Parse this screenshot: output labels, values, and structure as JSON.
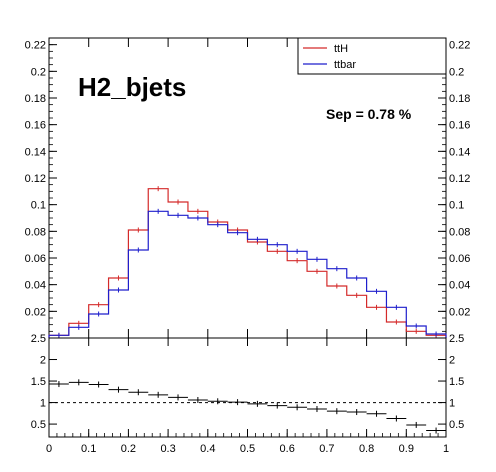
{
  "chart_data": [
    {
      "type": "histogram",
      "title": "H2_bjets",
      "annotation": "Sep = 0.78 %",
      "xlim": [
        0,
        1
      ],
      "ylim": [
        0,
        0.225
      ],
      "bin_edges": [
        0,
        0.05,
        0.1,
        0.15,
        0.2,
        0.25,
        0.3,
        0.35,
        0.4,
        0.45,
        0.5,
        0.55,
        0.6,
        0.65,
        0.7,
        0.75,
        0.8,
        0.85,
        0.9,
        0.95,
        1.0
      ],
      "y_ticks": [
        0.02,
        0.04,
        0.06,
        0.08,
        0.1,
        0.12,
        0.14,
        0.16,
        0.18,
        0.2,
        0.22
      ],
      "y_tick_labels": [
        "0.02",
        "0.04",
        "0.06",
        "0.08",
        "0.1",
        "0.12",
        "0.14",
        "0.16",
        "0.18",
        "0.2",
        "0.22"
      ],
      "legend": {
        "position": "top-right"
      },
      "series": [
        {
          "name": "ttH",
          "color": "#d42a2a",
          "values": [
            0.002,
            0.011,
            0.025,
            0.045,
            0.081,
            0.112,
            0.102,
            0.095,
            0.087,
            0.081,
            0.072,
            0.065,
            0.058,
            0.05,
            0.039,
            0.032,
            0.023,
            0.012,
            0.005,
            0.002
          ]
        },
        {
          "name": "ttbar",
          "color": "#1f1fcc",
          "values": [
            0.002,
            0.008,
            0.018,
            0.036,
            0.066,
            0.095,
            0.092,
            0.09,
            0.085,
            0.079,
            0.074,
            0.07,
            0.065,
            0.059,
            0.052,
            0.045,
            0.035,
            0.023,
            0.009,
            0.003
          ]
        }
      ]
    },
    {
      "type": "ratio",
      "xlim": [
        0,
        1
      ],
      "ylim": [
        0.2,
        2.5
      ],
      "x_ticks": [
        0,
        0.1,
        0.2,
        0.3,
        0.4,
        0.5,
        0.6,
        0.7,
        0.8,
        0.9,
        1.0
      ],
      "x_tick_labels": [
        "0",
        "0.1",
        "0.2",
        "0.3",
        "0.4",
        "0.5",
        "0.6",
        "0.7",
        "0.8",
        "0.9",
        "1"
      ],
      "y_ticks": [
        0.5,
        1,
        1.5,
        2,
        2.5
      ],
      "y_tick_labels": [
        "0.5",
        "1",
        "1.5",
        "2",
        "2.5"
      ],
      "reference_line": 1,
      "bin_edges": [
        0,
        0.05,
        0.1,
        0.15,
        0.2,
        0.25,
        0.3,
        0.35,
        0.4,
        0.45,
        0.5,
        0.55,
        0.6,
        0.65,
        0.7,
        0.75,
        0.8,
        0.85,
        0.9,
        0.95,
        1.0
      ],
      "values": [
        1.43,
        1.47,
        1.42,
        1.3,
        1.24,
        1.18,
        1.12,
        1.06,
        1.03,
        1.01,
        0.97,
        0.93,
        0.89,
        0.85,
        0.8,
        0.78,
        0.74,
        0.63,
        0.48,
        0.35
      ]
    }
  ]
}
